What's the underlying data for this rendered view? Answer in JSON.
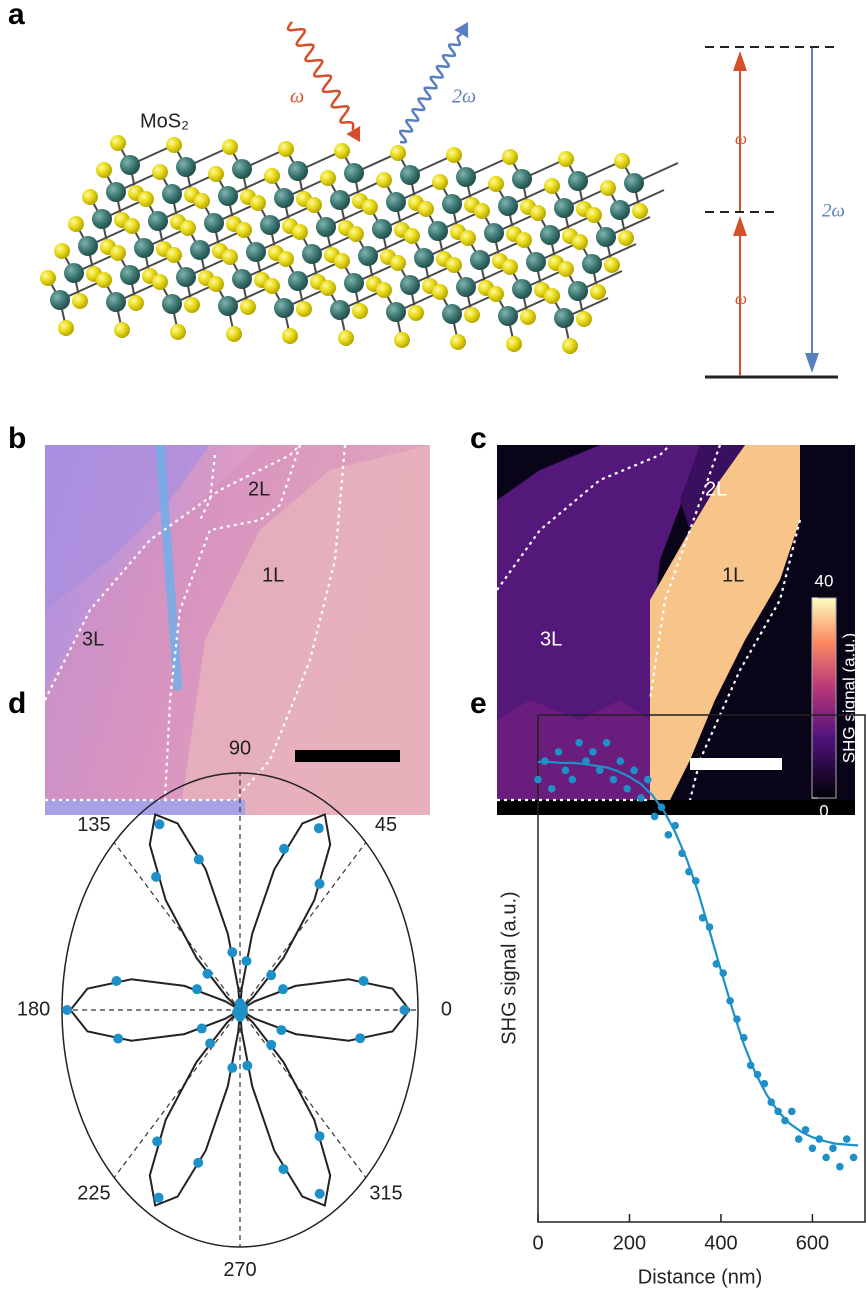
{
  "panel_a": {
    "label": "a",
    "material": "MoS₂",
    "incident": "ω",
    "emitted": "2ω",
    "level_labels": [
      "ω",
      "ω",
      "2ω"
    ]
  },
  "panel_b": {
    "label": "b",
    "regions": [
      "2L",
      "1L",
      "3L"
    ]
  },
  "panel_c": {
    "label": "c",
    "regions": [
      "2L",
      "1L",
      "3L"
    ],
    "colorbar": {
      "label": "SHG signal (a.u.)",
      "clim": [
        0,
        40
      ],
      "cticks": [
        0,
        40
      ]
    }
  },
  "chart_data": [
    {
      "type": "polar",
      "panel_label": "d",
      "rlim": [
        0,
        1.05
      ],
      "thetaticks": [
        0,
        45,
        90,
        135,
        180,
        225,
        270,
        315
      ],
      "points": {
        "color": "#1e90c8",
        "theta": [
          0,
          10,
          20,
          30,
          40,
          50,
          60,
          70,
          80,
          90,
          100,
          110,
          120,
          130,
          140,
          150,
          160,
          170,
          180,
          190,
          200,
          210,
          220,
          230,
          240,
          250,
          260,
          270,
          280,
          290,
          300,
          310,
          320,
          330,
          340,
          350
        ],
        "r": [
          0.97,
          0.74,
          0.27,
          0.02,
          0.24,
          0.73,
          0.93,
          0.76,
          0.22,
          0.03,
          0.26,
          0.71,
          0.95,
          0.77,
          0.25,
          0.01,
          0.27,
          0.74,
          1.02,
          0.73,
          0.24,
          0.02,
          0.23,
          0.76,
          0.96,
          0.72,
          0.26,
          0.03,
          0.25,
          0.75,
          0.94,
          0.73,
          0.24,
          0.02,
          0.26,
          0.72
        ]
      },
      "fit": {
        "color": "#222222",
        "theta": [
          0,
          6,
          12,
          18,
          24,
          30,
          36,
          42,
          48,
          54,
          60,
          66,
          72,
          78,
          84,
          90,
          96,
          102,
          108,
          114,
          120,
          126,
          132,
          138,
          144,
          150,
          156,
          162,
          168,
          174,
          180,
          186,
          192,
          198,
          204,
          210,
          216,
          222,
          228,
          234,
          240,
          246,
          252,
          258,
          264,
          270,
          276,
          282,
          288,
          294,
          300,
          306,
          312,
          318,
          324,
          330,
          336,
          342,
          348,
          354
        ],
        "r": [
          1,
          0.905,
          0.655,
          0.345,
          0.095,
          0,
          0.095,
          0.345,
          0.655,
          0.905,
          1,
          0.905,
          0.655,
          0.345,
          0.095,
          0,
          0.095,
          0.345,
          0.655,
          0.905,
          1,
          0.905,
          0.655,
          0.345,
          0.095,
          0,
          0.095,
          0.345,
          0.655,
          0.905,
          1,
          0.905,
          0.655,
          0.345,
          0.095,
          0,
          0.095,
          0.345,
          0.655,
          0.905,
          1,
          0.905,
          0.655,
          0.345,
          0.095,
          0,
          0.095,
          0.345,
          0.655,
          0.905,
          1,
          0.905,
          0.655,
          0.345,
          0.095,
          0,
          0.095,
          0.345,
          0.655,
          0.905
        ]
      }
    },
    {
      "type": "scatter",
      "panel_label": "e",
      "xlabel": "Distance (nm)",
      "ylabel": "SHG signal (a.u.)",
      "xlim": [
        0,
        715
      ],
      "xticks": [
        0,
        200,
        400,
        600
      ],
      "ylim": [
        0.45,
        1.0
      ],
      "points": {
        "color": "#1e90c8",
        "x": [
          0,
          15,
          30,
          45,
          60,
          75,
          90,
          105,
          120,
          135,
          150,
          165,
          180,
          195,
          210,
          225,
          240,
          255,
          270,
          285,
          300,
          315,
          330,
          345,
          360,
          375,
          390,
          405,
          420,
          435,
          450,
          465,
          480,
          495,
          510,
          525,
          540,
          555,
          570,
          585,
          600,
          615,
          630,
          645,
          660,
          675,
          690
        ],
        "y": [
          0.93,
          0.95,
          0.92,
          0.96,
          0.94,
          0.93,
          0.97,
          0.95,
          0.96,
          0.94,
          0.97,
          0.93,
          0.95,
          0.92,
          0.94,
          0.91,
          0.93,
          0.89,
          0.9,
          0.87,
          0.88,
          0.85,
          0.83,
          0.82,
          0.78,
          0.77,
          0.73,
          0.72,
          0.69,
          0.67,
          0.65,
          0.62,
          0.61,
          0.6,
          0.58,
          0.57,
          0.56,
          0.57,
          0.54,
          0.55,
          0.53,
          0.54,
          0.52,
          0.53,
          0.51,
          0.54,
          0.52
        ]
      },
      "fit": {
        "color": "#1e90c8",
        "x": [
          0,
          25,
          50,
          75,
          100,
          125,
          150,
          175,
          200,
          225,
          250,
          275,
          300,
          325,
          350,
          375,
          400,
          425,
          450,
          475,
          500,
          525,
          550,
          575,
          600,
          625,
          650,
          675,
          700
        ],
        "y": [
          0.949,
          0.949,
          0.948,
          0.948,
          0.947,
          0.945,
          0.943,
          0.939,
          0.933,
          0.925,
          0.913,
          0.896,
          0.873,
          0.844,
          0.808,
          0.766,
          0.723,
          0.681,
          0.643,
          0.612,
          0.588,
          0.57,
          0.557,
          0.548,
          0.542,
          0.538,
          0.535,
          0.534,
          0.533
        ]
      }
    }
  ]
}
